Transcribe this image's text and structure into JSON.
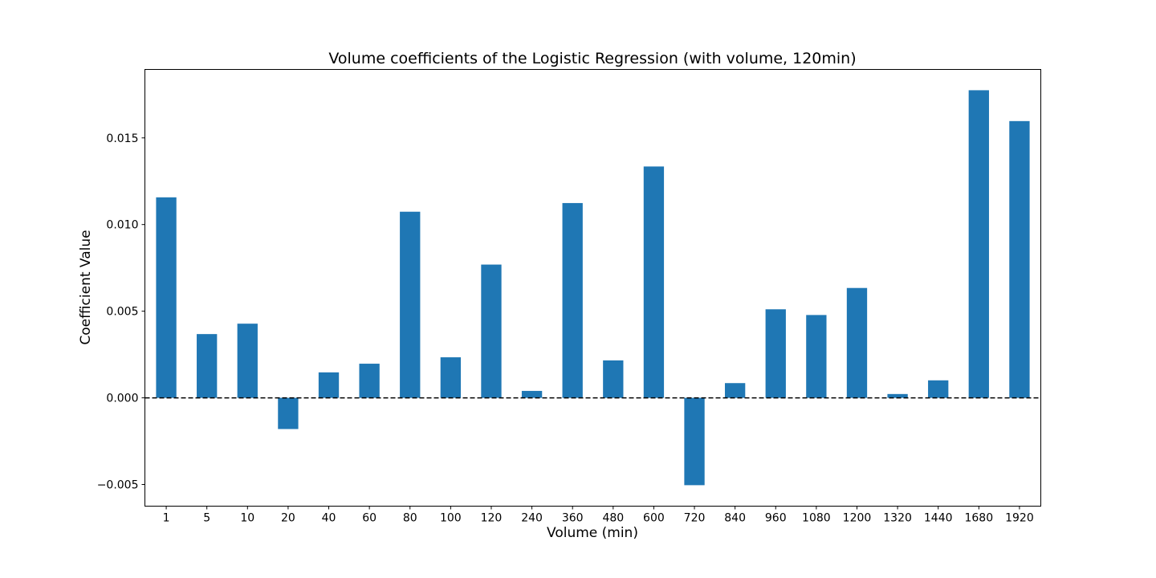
{
  "chart_data": {
    "type": "bar",
    "title": "Volume coefficients of the Logistic Regression (with volume, 120min)",
    "xlabel": "Volume (min)",
    "ylabel": "Coefficient Value",
    "categories": [
      "1",
      "5",
      "10",
      "20",
      "40",
      "60",
      "80",
      "100",
      "120",
      "240",
      "360",
      "480",
      "600",
      "720",
      "840",
      "960",
      "1080",
      "1200",
      "1320",
      "1440",
      "1680",
      "1920"
    ],
    "values": [
      0.01157,
      0.00368,
      0.00428,
      -0.0018,
      0.00147,
      0.00197,
      0.01074,
      0.00234,
      0.00769,
      0.0004,
      0.01124,
      0.00216,
      0.01335,
      -0.00504,
      0.00085,
      0.00511,
      0.00478,
      0.00634,
      0.00022,
      0.00101,
      0.01775,
      0.01597
    ],
    "ylim": [
      -0.00625,
      0.01895
    ],
    "yticks": [
      -0.005,
      0.0,
      0.005,
      0.01,
      0.015
    ],
    "ytick_labels": [
      "−0.005",
      "0.000",
      "0.005",
      "0.010",
      "0.015"
    ],
    "reference_line": {
      "y": 0.0,
      "style": "dashed",
      "color": "#000000"
    },
    "bar_color": "#1f77b4",
    "grid": false,
    "legend": "none"
  }
}
